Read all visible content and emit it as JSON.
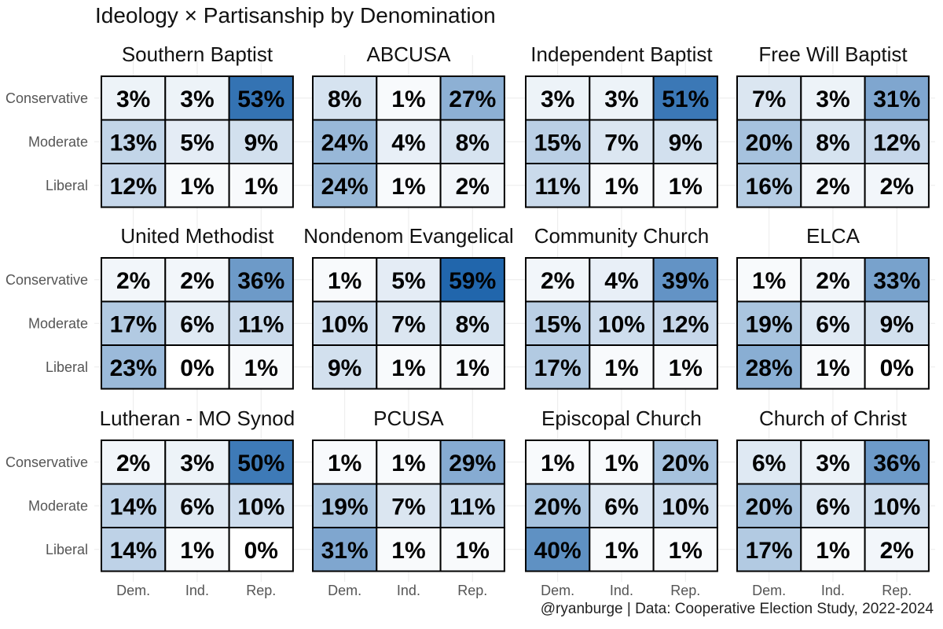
{
  "title": "Ideology × Partisanship by Denomination",
  "caption": "@ryanburge | Data: Cooperative Election Study, 2022-2024",
  "chart_data": {
    "type": "heatmap",
    "title": "Ideology × Partisanship by Denomination",
    "x_categories": [
      "Dem.",
      "Ind.",
      "Rep."
    ],
    "y_categories": [
      "Conservative",
      "Moderate",
      "Liberal"
    ],
    "value_format": "percent",
    "color_scale": {
      "low": "#ffffff",
      "high": "#2166ac",
      "max": 59
    },
    "panels": [
      {
        "name": "Southern Baptist",
        "values": [
          [
            3,
            3,
            53
          ],
          [
            13,
            5,
            9
          ],
          [
            12,
            1,
            1
          ]
        ]
      },
      {
        "name": "ABCUSA",
        "values": [
          [
            8,
            1,
            27
          ],
          [
            24,
            4,
            8
          ],
          [
            24,
            1,
            2
          ]
        ]
      },
      {
        "name": "Independent Baptist",
        "values": [
          [
            3,
            3,
            51
          ],
          [
            15,
            7,
            9
          ],
          [
            11,
            1,
            1
          ]
        ]
      },
      {
        "name": "Free Will Baptist",
        "values": [
          [
            7,
            3,
            31
          ],
          [
            20,
            8,
            12
          ],
          [
            16,
            2,
            2
          ]
        ]
      },
      {
        "name": "United Methodist",
        "values": [
          [
            2,
            2,
            36
          ],
          [
            17,
            6,
            11
          ],
          [
            23,
            0,
            1
          ]
        ]
      },
      {
        "name": "Nondenom Evangelical",
        "values": [
          [
            1,
            5,
            59
          ],
          [
            10,
            7,
            8
          ],
          [
            9,
            1,
            1
          ]
        ]
      },
      {
        "name": "Community Church",
        "values": [
          [
            2,
            4,
            39
          ],
          [
            15,
            10,
            12
          ],
          [
            17,
            1,
            1
          ]
        ]
      },
      {
        "name": "ELCA",
        "values": [
          [
            1,
            2,
            33
          ],
          [
            19,
            6,
            9
          ],
          [
            28,
            1,
            0
          ]
        ]
      },
      {
        "name": "Lutheran - MO Synod",
        "values": [
          [
            2,
            3,
            50
          ],
          [
            14,
            6,
            10
          ],
          [
            14,
            1,
            0
          ]
        ]
      },
      {
        "name": "PCUSA",
        "values": [
          [
            1,
            1,
            29
          ],
          [
            19,
            7,
            11
          ],
          [
            31,
            1,
            1
          ]
        ]
      },
      {
        "name": "Episcopal Church",
        "values": [
          [
            1,
            1,
            20
          ],
          [
            20,
            6,
            10
          ],
          [
            40,
            1,
            1
          ]
        ]
      },
      {
        "name": "Church of Christ",
        "values": [
          [
            6,
            3,
            36
          ],
          [
            20,
            6,
            10
          ],
          [
            17,
            1,
            2
          ]
        ]
      }
    ]
  }
}
